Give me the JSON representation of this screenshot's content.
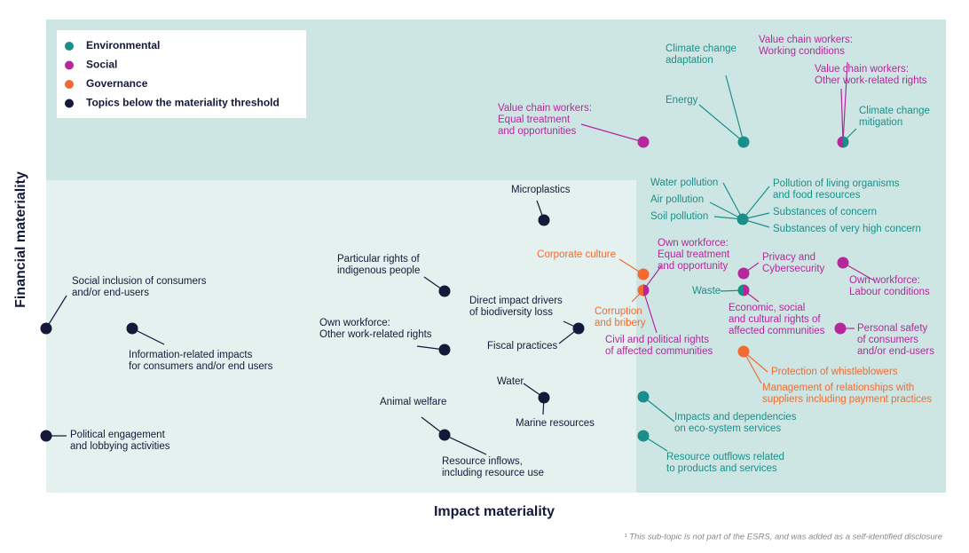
{
  "legend": [
    {
      "label": "Environmental",
      "color": "#1a8f8a"
    },
    {
      "label": "Social",
      "color": "#b5279b"
    },
    {
      "label": "Governance",
      "color": "#f26a30"
    },
    {
      "label": "Topics below the materiality threshold",
      "color": "#14193a"
    }
  ],
  "topics": [
    {
      "label": [
        "Value chain workers:",
        "Equal treatment",
        "and opportunities"
      ],
      "color": "#b5279b"
    },
    {
      "label": [
        "Climate change",
        "adaptation"
      ],
      "color": "#1a8f8a"
    },
    {
      "label": [
        "Energy"
      ],
      "color": "#1a8f8a"
    },
    {
      "label": [
        "Value chain workers:",
        "Working conditions"
      ],
      "color": "#b5279b"
    },
    {
      "label": [
        "Value chain workers:",
        "Other work-related rights"
      ],
      "color": "#b5279b"
    },
    {
      "label": [
        "Climate change",
        "mitigation"
      ],
      "color": "#1a8f8a"
    },
    {
      "label": [
        "Microplastics"
      ],
      "color": "#14193a"
    },
    {
      "label": [
        "Water pollution"
      ],
      "color": "#1a8f8a"
    },
    {
      "label": [
        "Air pollution"
      ],
      "color": "#1a8f8a"
    },
    {
      "label": [
        "Soil pollution"
      ],
      "color": "#1a8f8a"
    },
    {
      "label": [
        "Pollution of living organisms",
        "and food resources"
      ],
      "color": "#1a8f8a"
    },
    {
      "label": [
        "Substances of concern"
      ],
      "color": "#1a8f8a"
    },
    {
      "label": [
        "Substances of very high concern"
      ],
      "color": "#1a8f8a"
    },
    {
      "label": [
        "Corporate culture"
      ],
      "color": "#f26a30"
    },
    {
      "label": [
        "Own workforce:",
        "Equal treatment",
        "and opportunity"
      ],
      "color": "#b5279b"
    },
    {
      "label": [
        "Corruption",
        "and bribery"
      ],
      "color": "#f26a30"
    },
    {
      "label": [
        "Civil and political rights",
        "of affected communities"
      ],
      "color": "#b5279b"
    },
    {
      "label": [
        "Privacy and",
        "Cybersecurity"
      ],
      "color": "#b5279b"
    },
    {
      "label": [
        "Waste"
      ],
      "color": "#1a8f8a"
    },
    {
      "label": [
        "Economic, social",
        "and cultural rights of",
        "affected communities"
      ],
      "color": "#b5279b"
    },
    {
      "label": [
        "Own workforce:",
        "Labour conditions"
      ],
      "color": "#b5279b"
    },
    {
      "label": [
        "Personal safety",
        "of consumers",
        "and/or end-users"
      ],
      "color": "#b5279b"
    },
    {
      "label": [
        "Protection of whistleblowers"
      ],
      "color": "#f26a30"
    },
    {
      "label": [
        "Management of relationships with",
        "suppliers including payment practices"
      ],
      "color": "#f26a30"
    },
    {
      "label": [
        "Social inclusion of consumers",
        "and/or end-users"
      ],
      "color": "#14193a"
    },
    {
      "label": [
        "Information-related impacts",
        "for consumers and/or end users"
      ],
      "color": "#14193a"
    },
    {
      "label": [
        "Political engagement",
        "and lobbying activities"
      ],
      "color": "#14193a"
    },
    {
      "label": [
        "Particular rights of",
        "indigenous people"
      ],
      "color": "#14193a"
    },
    {
      "label": [
        "Own workforce:",
        "Other work-related rights"
      ],
      "color": "#14193a"
    },
    {
      "label": [
        "Direct impact drivers",
        "of biodiversity loss"
      ],
      "color": "#14193a"
    },
    {
      "label": [
        "Fiscal practices"
      ],
      "color": "#14193a"
    },
    {
      "label": [
        "Water"
      ],
      "color": "#14193a"
    },
    {
      "label": [
        "Marine resources"
      ],
      "color": "#14193a"
    },
    {
      "label": [
        "Animal welfare"
      ],
      "color": "#14193a"
    },
    {
      "label": [
        "Resource inflows,",
        "including resource use"
      ],
      "color": "#14193a"
    },
    {
      "label": [
        "Impacts and dependencies",
        "on eco-system services"
      ],
      "color": "#1a8f8a"
    },
    {
      "label": [
        "Resource outflows related",
        "to products and services"
      ],
      "color": "#1a8f8a"
    }
  ],
  "x_axis_label": "Impact materiality",
  "y_axis_label": "Financial materiality",
  "footnote": "¹ This sub-topic is not part of the ESRS, and was added as a self-identified disclosure"
}
